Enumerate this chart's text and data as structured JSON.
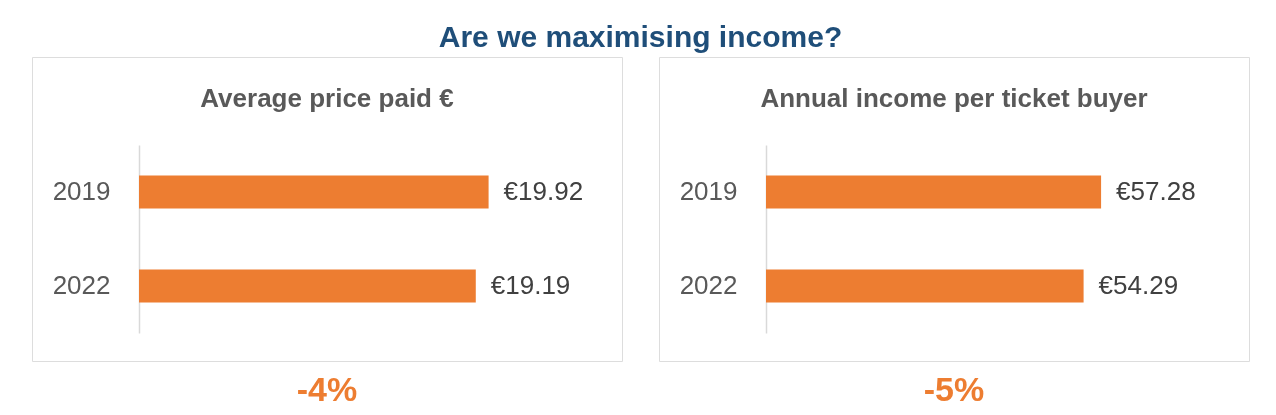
{
  "chart_data": [
    {
      "type": "other",
      "title": "Are we maximising income?"
    },
    {
      "type": "bar",
      "orientation": "horizontal",
      "title": "Average price paid €",
      "categories": [
        "2019",
        "2022"
      ],
      "values": [
        19.92,
        19.19
      ],
      "value_labels": [
        "€19.92",
        "€19.19"
      ],
      "color": "#ed7d31",
      "tick_labels": "y",
      "annotations": [
        "-4%"
      ]
    },
    {
      "type": "bar",
      "orientation": "horizontal",
      "title": "Annual income per ticket buyer",
      "categories": [
        "2019",
        "2022"
      ],
      "values": [
        57.28,
        54.29
      ],
      "value_labels": [
        "€57.28",
        "€54.29"
      ],
      "color": "#ed7d31",
      "tick_labels": "y",
      "annotations": [
        "-5%"
      ]
    }
  ]
}
